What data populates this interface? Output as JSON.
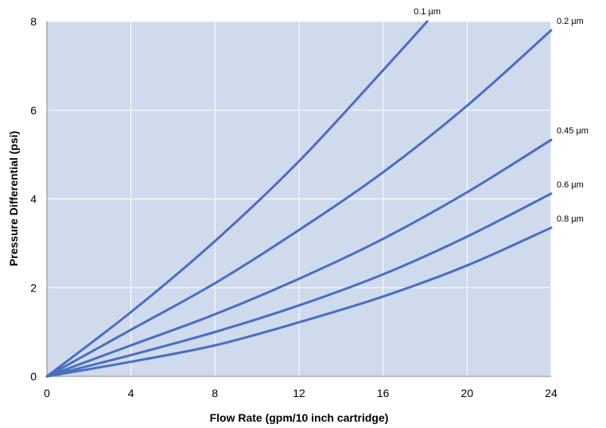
{
  "chart_data": {
    "type": "line",
    "title": "",
    "xlabel": "Flow Rate (gpm/10 inch cartridge)",
    "ylabel": "Pressure Differential (psi)",
    "xlim": [
      0,
      24
    ],
    "ylim": [
      0,
      8
    ],
    "xticks": [
      0,
      4,
      8,
      12,
      16,
      20,
      24
    ],
    "yticks": [
      0,
      2,
      4,
      6,
      8
    ],
    "grid": true,
    "legend": "none",
    "colors": {
      "line": "#4a6ec1",
      "plot_bg": "#cfdaed",
      "grid": "#ffffff"
    },
    "series": [
      {
        "name": "0.1 µm",
        "x": [
          0,
          4,
          8,
          12,
          16,
          18.1
        ],
        "y": [
          0,
          1.45,
          3.05,
          4.85,
          6.9,
          8.0
        ]
      },
      {
        "name": "0.2 µm",
        "x": [
          0,
          4,
          8,
          12,
          16,
          20,
          24
        ],
        "y": [
          0,
          1.05,
          2.1,
          3.3,
          4.6,
          6.1,
          7.8
        ]
      },
      {
        "name": "0.45 µm",
        "x": [
          0,
          4,
          8,
          12,
          16,
          20,
          24
        ],
        "y": [
          0,
          0.7,
          1.4,
          2.2,
          3.1,
          4.15,
          5.33
        ]
      },
      {
        "name": "0.6 µm",
        "x": [
          0,
          4,
          8,
          12,
          16,
          20,
          24
        ],
        "y": [
          0,
          0.48,
          1.0,
          1.6,
          2.3,
          3.15,
          4.12
        ]
      },
      {
        "name": "0.8 µm",
        "x": [
          0,
          4,
          8,
          12,
          16,
          20,
          24
        ],
        "y": [
          0,
          0.33,
          0.7,
          1.22,
          1.8,
          2.5,
          3.35
        ]
      }
    ]
  }
}
